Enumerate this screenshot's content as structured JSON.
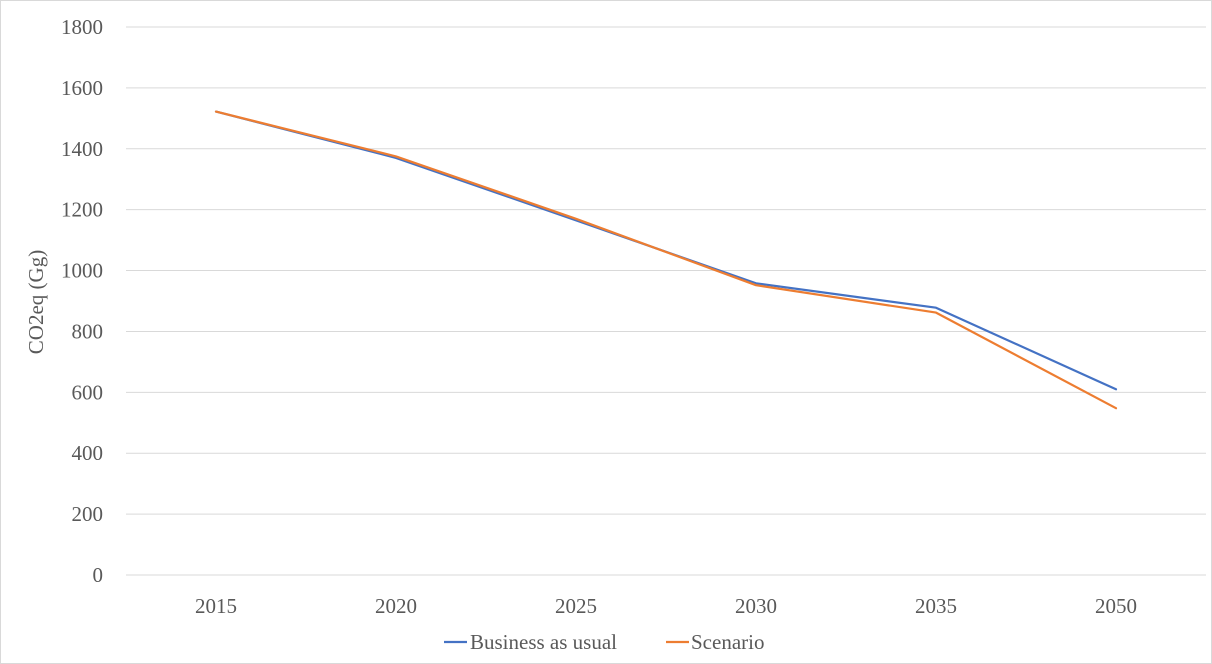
{
  "chart_data": {
    "type": "line",
    "title": "",
    "xlabel": "",
    "ylabel": "CO2eq (Gg)",
    "categories": [
      "2015",
      "2020",
      "2025",
      "2030",
      "2035",
      "2050"
    ],
    "ylim": [
      0,
      1800
    ],
    "yticks": [
      0,
      200,
      400,
      600,
      800,
      1000,
      1200,
      1400,
      1600,
      1800
    ],
    "grid": true,
    "legend_position": "bottom",
    "series": [
      {
        "name": "Business as usual",
        "color": "#4472c4",
        "values": [
          1522,
          1370,
          1165,
          958,
          878,
          610
        ]
      },
      {
        "name": "Scenario",
        "color": "#ed7d31",
        "values": [
          1522,
          1375,
          1170,
          952,
          862,
          548
        ]
      }
    ]
  }
}
